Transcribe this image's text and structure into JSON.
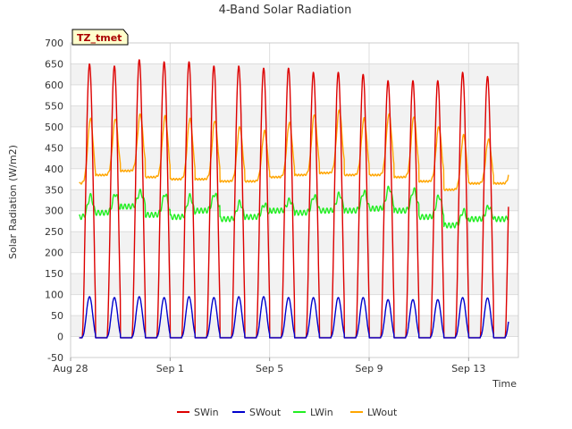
{
  "chart_data": {
    "type": "line",
    "title": "4-Band Solar Radiation",
    "xlabel": "Time",
    "ylabel": "Solar Radiation (W/m2)",
    "badge": "TZ_tmet",
    "ylim": [
      -50,
      700
    ],
    "xlim": [
      0,
      18.0
    ],
    "grid": true,
    "legend": "bottom",
    "y_ticks": [
      -50,
      0,
      50,
      100,
      150,
      200,
      250,
      300,
      350,
      400,
      450,
      500,
      550,
      600,
      650,
      700
    ],
    "x_ticks": [
      {
        "x": 0,
        "label": "Aug 28"
      },
      {
        "x": 4,
        "label": "Sep 1"
      },
      {
        "x": 8,
        "label": "Sep 5"
      },
      {
        "x": 12,
        "label": "Sep 9"
      },
      {
        "x": 16,
        "label": "Sep 13"
      }
    ],
    "series": [
      {
        "name": "SWin",
        "color": "#dd0000",
        "daily_peak": [
          650,
          645,
          660,
          655,
          655,
          645,
          645,
          640,
          640,
          630,
          630,
          625,
          610,
          610,
          610,
          630,
          620
        ]
      },
      {
        "name": "SWout",
        "color": "#0000cc",
        "daily_peak": [
          95,
          93,
          95,
          93,
          95,
          93,
          95,
          95,
          93,
          93,
          93,
          93,
          88,
          88,
          88,
          93,
          92
        ]
      },
      {
        "name": "LWin",
        "color": "#22ee22",
        "daily_peak": [
          335,
          340,
          345,
          340,
          335,
          340,
          320,
          315,
          325,
          335,
          340,
          345,
          355,
          350,
          335,
          300,
          310
        ],
        "night_level": [
          285,
          295,
          310,
          290,
          285,
          300,
          280,
          285,
          300,
          295,
          300,
          300,
          305,
          300,
          285,
          265,
          280
        ]
      },
      {
        "name": "LWout",
        "color": "#ffa500",
        "daily_peak": [
          520,
          520,
          530,
          525,
          520,
          515,
          500,
          490,
          510,
          530,
          540,
          520,
          530,
          525,
          500,
          480,
          470
        ],
        "night_level": [
          365,
          385,
          395,
          380,
          375,
          375,
          370,
          370,
          380,
          385,
          390,
          385,
          385,
          380,
          370,
          350,
          365
        ]
      }
    ]
  }
}
